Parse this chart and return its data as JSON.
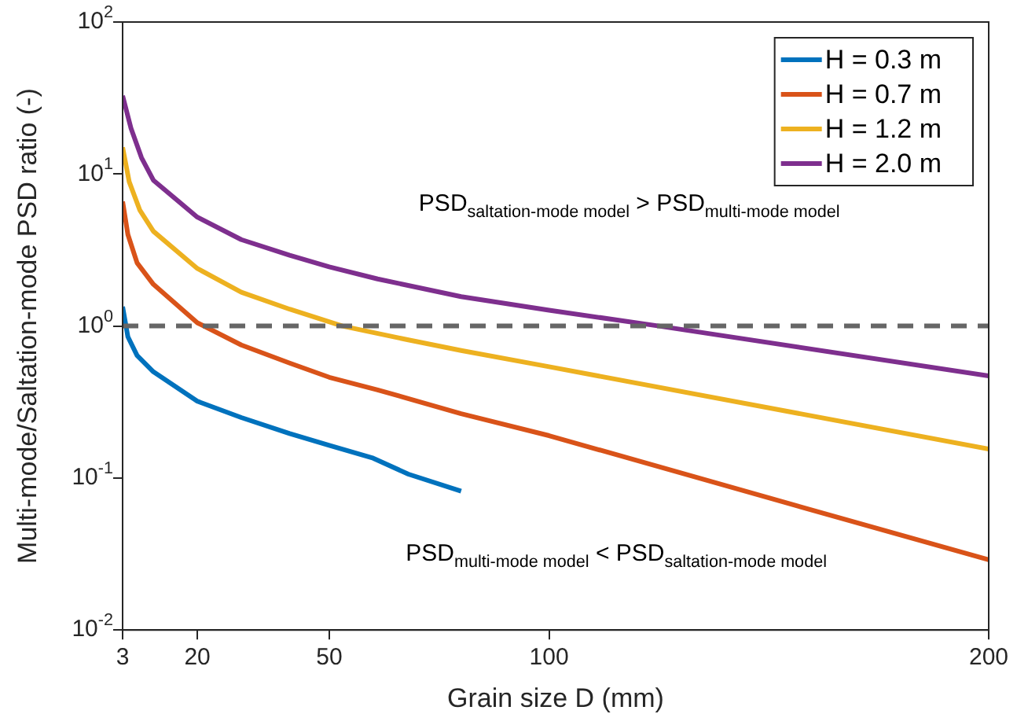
{
  "chart_data": {
    "type": "line",
    "xlabel": "Grain size D (mm)",
    "ylabel": "Multi-mode/Saltation-mode PSD ratio (-)",
    "xlim": [
      3,
      200
    ],
    "xticks": [
      3,
      20,
      50,
      100,
      200
    ],
    "ylim": [
      0.01,
      100
    ],
    "yticks": [
      {
        "value": 0.01,
        "label": "10$^{-2}$"
      },
      {
        "value": 0.1,
        "label": "10$^{-1}$"
      },
      {
        "value": 1,
        "label": "10$^{0}$"
      },
      {
        "value": 10,
        "label": "10$^{1}$"
      },
      {
        "value": 100,
        "label": "10$^{2}$"
      }
    ],
    "log": "y",
    "grid": false,
    "legend": "top right",
    "line_style": "solid",
    "marker": "none",
    "series": [
      {
        "name": "H = 0.3 m",
        "color": "#0072bd",
        "x": [
          3,
          4.2,
          6.3,
          10,
          20,
          30,
          41,
          50,
          60,
          68,
          80
        ],
        "values": [
          1.34,
          0.85,
          0.64,
          0.5,
          0.32,
          0.25,
          0.196,
          0.164,
          0.135,
          0.106,
          0.082
        ]
      },
      {
        "name": "H = 0.7 m",
        "color": "#d95319",
        "x": [
          3,
          4.2,
          6.3,
          10,
          20,
          30,
          41,
          50,
          61,
          80,
          100,
          150,
          200
        ],
        "values": [
          6.6,
          4.0,
          2.6,
          1.88,
          1.05,
          0.75,
          0.57,
          0.46,
          0.38,
          0.265,
          0.19,
          0.074,
          0.029
        ]
      },
      {
        "name": "H = 1.2 m",
        "color": "#edb120",
        "x": [
          3,
          4.5,
          6.9,
          10,
          20,
          30,
          41,
          53,
          68,
          80,
          100,
          200
        ],
        "values": [
          15,
          8.9,
          5.8,
          4.2,
          2.39,
          1.67,
          1.29,
          1.0,
          0.81,
          0.69,
          0.54,
          0.155
        ]
      },
      {
        "name": "H = 2.0 m",
        "color": "#7e2f8e",
        "x": [
          3,
          4.9,
          7.3,
          10,
          20,
          30,
          41,
          50,
          61,
          80,
          100,
          125,
          200
        ],
        "values": [
          32.7,
          20,
          12.8,
          9.1,
          5.2,
          3.7,
          2.92,
          2.45,
          2.04,
          1.56,
          1.27,
          1.0,
          0.47
        ]
      }
    ],
    "ref_lines": [
      {
        "axis": "y",
        "value": 1,
        "color": "#666666",
        "line_style": "dashed"
      }
    ],
    "annotations": [
      "PSD$_{saltation-mode model}$ > PSD$_{multi-mode model}$",
      "PSD$_{multi-mode model}$ < PSD$_{saltation-mode model}$"
    ]
  }
}
